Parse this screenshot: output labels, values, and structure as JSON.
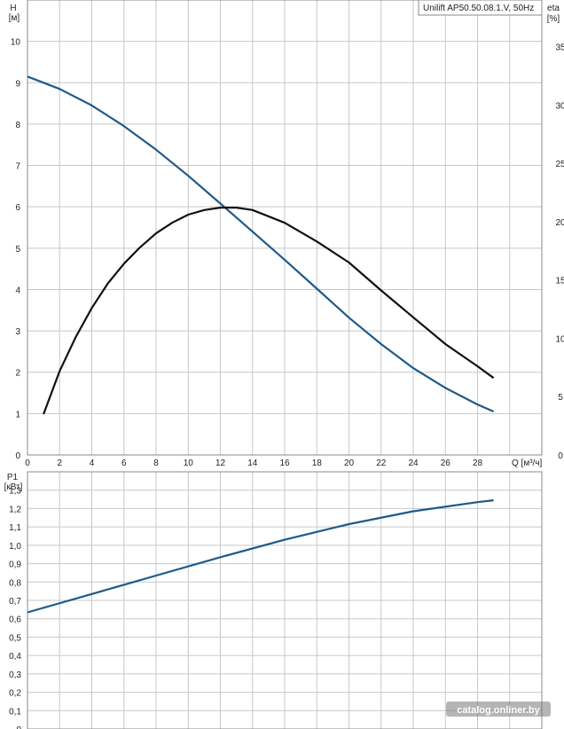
{
  "chart_data": [
    {
      "type": "line",
      "title": "Unilift AP50.50.08.1.V, 50Hz",
      "xlabel": "Q [м³/ч]",
      "ylabel": "H",
      "ylabel_unit": "[м]",
      "y2label": "eta",
      "y2label_unit": "[%]",
      "xlim": [
        0,
        32
      ],
      "ylim": [
        0,
        11
      ],
      "y2lim": [
        0,
        39
      ],
      "x_ticks": [
        "0",
        "2",
        "4",
        "6",
        "8",
        "10",
        "12",
        "14",
        "16",
        "18",
        "20",
        "22",
        "24",
        "26",
        "28"
      ],
      "y_ticks": [
        "0",
        "1",
        "2",
        "3",
        "4",
        "5",
        "6",
        "7",
        "8",
        "9",
        "10"
      ],
      "y2_ticks": [
        "0",
        "5",
        "10",
        "15",
        "20",
        "25",
        "30",
        "35"
      ],
      "grid": true,
      "series": [
        {
          "name": "H",
          "axis": "left",
          "color": "#1f5a8a",
          "x": [
            0,
            2,
            4,
            6,
            8,
            10,
            12,
            14,
            16,
            18,
            20,
            22,
            24,
            26,
            28,
            29
          ],
          "y": [
            9.15,
            8.85,
            8.45,
            7.95,
            7.38,
            6.75,
            6.08,
            5.4,
            4.72,
            4.02,
            3.32,
            2.68,
            2.1,
            1.62,
            1.22,
            1.05
          ]
        },
        {
          "name": "eta",
          "axis": "right",
          "color": "#111111",
          "x": [
            1,
            2,
            3,
            4,
            5,
            6,
            7,
            8,
            9,
            10,
            11,
            12,
            13,
            14,
            16,
            18,
            20,
            22,
            24,
            26,
            28,
            29
          ],
          "y": [
            3.5,
            7.2,
            10.1,
            12.6,
            14.7,
            16.4,
            17.8,
            19.0,
            19.9,
            20.6,
            21.0,
            21.2,
            21.2,
            21.0,
            19.9,
            18.3,
            16.5,
            14.1,
            11.8,
            9.5,
            7.6,
            6.6
          ]
        }
      ]
    },
    {
      "type": "line",
      "title": "",
      "xlabel": "",
      "ylabel": "P1",
      "ylabel_unit": "[кВт]",
      "xlim": [
        0,
        32
      ],
      "ylim": [
        0,
        1.4
      ],
      "y_ticks": [
        "0",
        "0,1",
        "0,2",
        "0,3",
        "0,4",
        "0,5",
        "0,6",
        "0,7",
        "0,8",
        "0,9",
        "1,0",
        "1,1",
        "1,2",
        "1,3"
      ],
      "grid": true,
      "series": [
        {
          "name": "P1",
          "color": "#1f5a8a",
          "x": [
            0,
            4,
            8,
            12,
            16,
            20,
            24,
            28,
            29
          ],
          "y": [
            0.635,
            0.735,
            0.835,
            0.935,
            1.03,
            1.115,
            1.185,
            1.235,
            1.245
          ]
        }
      ]
    }
  ],
  "watermark": "catalog.onliner.by",
  "colors": {
    "grid": "#c8c8c8",
    "frame": "#888888",
    "h_curve": "#1f5a8a",
    "eta_curve": "#111111",
    "p1_curve": "#1f5a8a"
  }
}
